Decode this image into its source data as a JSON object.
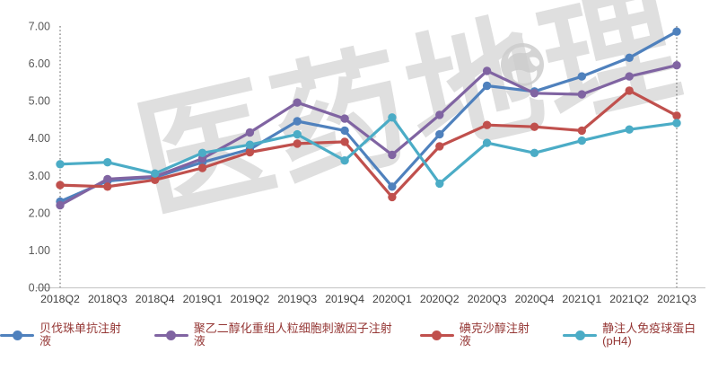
{
  "watermark": {
    "text": "医药地理",
    "color": "#cdcdcd",
    "icon": "globe-icon"
  },
  "chart_data": {
    "type": "line",
    "title": "",
    "xlabel": "",
    "ylabel": "",
    "categories": [
      "2018Q2",
      "2018Q3",
      "2018Q4",
      "2019Q1",
      "2019Q2",
      "2019Q3",
      "2019Q4",
      "2020Q1",
      "2020Q2",
      "2020Q3",
      "2020Q4",
      "2021Q1",
      "2021Q2",
      "2021Q3"
    ],
    "series": [
      {
        "name": "贝伐珠单抗注射液",
        "color": "#4F81BD",
        "values": [
          2.3,
          2.85,
          2.95,
          3.35,
          3.7,
          4.45,
          4.2,
          2.7,
          4.1,
          5.4,
          5.25,
          5.65,
          6.15,
          6.85
        ]
      },
      {
        "name": "聚乙二醇化重组人粒细胞刺激因子注射液",
        "color": "#8064A2",
        "values": [
          2.2,
          2.9,
          2.97,
          3.45,
          4.15,
          4.95,
          4.52,
          3.55,
          4.62,
          5.8,
          5.2,
          5.17,
          5.65,
          5.95
        ]
      },
      {
        "name": "碘克沙醇注射液",
        "color": "#C0504D",
        "values": [
          2.74,
          2.7,
          2.88,
          3.2,
          3.62,
          3.85,
          3.9,
          2.42,
          3.78,
          4.35,
          4.3,
          4.2,
          5.27,
          4.6
        ]
      },
      {
        "name": "静注人免疫球蛋白(pH4)",
        "color": "#4BACC6",
        "values": [
          3.3,
          3.35,
          3.05,
          3.6,
          3.82,
          4.1,
          3.4,
          4.55,
          2.78,
          3.87,
          3.6,
          3.93,
          4.23,
          4.4
        ]
      }
    ],
    "yticks": [
      "0.00",
      "1.00",
      "2.00",
      "3.00",
      "4.00",
      "5.00",
      "6.00",
      "7.00"
    ],
    "ylim": [
      0,
      7
    ],
    "grid": false,
    "legend_position": "bottom",
    "legend_text_color": "#953735",
    "axis_color": "#c3c3c3",
    "ytick_color": "#595959",
    "xtick_color": "#3f3f3f",
    "dotted_guide_color": "#7f7f7f",
    "highlight_columns": [
      "2018Q2",
      "2021Q3"
    ]
  }
}
